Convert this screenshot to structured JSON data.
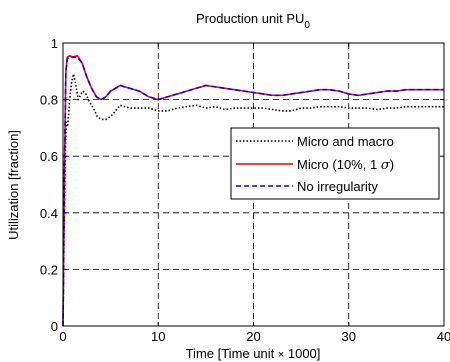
{
  "chart_data": {
    "type": "line",
    "title_main": "Production unit PU",
    "title_sub": "0",
    "xlabel_pre": "Time [Time unit ",
    "xlabel_sym": "×",
    "xlabel_post": " 1000]",
    "ylabel": "Utilization [fraction]",
    "xlim": [
      0,
      40
    ],
    "ylim": [
      0,
      1
    ],
    "xticks": [
      0,
      10,
      20,
      30,
      40
    ],
    "yticks": [
      0,
      0.2,
      0.4,
      0.6,
      0.8,
      1
    ],
    "xtick_labels": [
      "0",
      "10",
      "20",
      "30",
      "40"
    ],
    "ytick_labels": [
      "0",
      "0.2",
      "0.4",
      "0.6",
      "0.8",
      "1"
    ],
    "grid": true,
    "legend_position": "center-right",
    "series": [
      {
        "name": "Micro and macro",
        "color": "#000000",
        "style": "dotted",
        "x": [
          0,
          0.12,
          0.25,
          0.35,
          0.5,
          0.7,
          0.9,
          1.1,
          1.3,
          1.6,
          1.9,
          2.1,
          2.4,
          2.8,
          3.2,
          3.6,
          4.0,
          4.5,
          5.0,
          5.5,
          6.0,
          7.0,
          8.0,
          9.0,
          10.0,
          11,
          12,
          13,
          14,
          15,
          16,
          17,
          18,
          19,
          20,
          21,
          22,
          23,
          24,
          25,
          26,
          27,
          28,
          29,
          30,
          31,
          32,
          33,
          34,
          35,
          36,
          37,
          38,
          39,
          40
        ],
        "y": [
          0.0,
          0.35,
          0.62,
          0.72,
          0.71,
          0.8,
          0.86,
          0.89,
          0.86,
          0.8,
          0.82,
          0.83,
          0.82,
          0.79,
          0.77,
          0.74,
          0.73,
          0.73,
          0.74,
          0.76,
          0.78,
          0.77,
          0.77,
          0.77,
          0.76,
          0.76,
          0.77,
          0.775,
          0.78,
          0.77,
          0.775,
          0.765,
          0.77,
          0.77,
          0.77,
          0.77,
          0.765,
          0.76,
          0.76,
          0.77,
          0.77,
          0.775,
          0.775,
          0.775,
          0.77,
          0.77,
          0.77,
          0.765,
          0.77,
          0.77,
          0.775,
          0.775,
          0.775,
          0.775,
          0.775
        ]
      },
      {
        "name": "Micro (10%, 1 σ)",
        "color": "#ff0000",
        "style": "solid",
        "x": [
          0,
          0.15,
          0.3,
          0.45,
          0.7,
          1.0,
          1.5,
          2.0,
          2.5,
          3.0,
          3.5,
          4.0,
          4.5,
          5.0,
          5.5,
          6.0,
          7.0,
          8.0,
          9.0,
          10.0,
          11,
          12,
          13,
          14,
          15,
          16,
          17,
          18,
          19,
          20,
          21,
          22,
          23,
          24,
          25,
          26,
          27,
          28,
          29,
          30,
          31,
          32,
          33,
          34,
          35,
          36,
          37,
          38,
          39,
          40
        ],
        "y": [
          0.0,
          0.55,
          0.9,
          0.95,
          0.955,
          0.95,
          0.955,
          0.93,
          0.88,
          0.84,
          0.81,
          0.8,
          0.81,
          0.83,
          0.84,
          0.85,
          0.84,
          0.83,
          0.81,
          0.8,
          0.81,
          0.82,
          0.83,
          0.84,
          0.85,
          0.845,
          0.84,
          0.835,
          0.83,
          0.825,
          0.82,
          0.815,
          0.815,
          0.82,
          0.825,
          0.83,
          0.835,
          0.835,
          0.83,
          0.82,
          0.815,
          0.82,
          0.825,
          0.83,
          0.83,
          0.835,
          0.835,
          0.835,
          0.835,
          0.835
        ]
      },
      {
        "name": "No irregularity",
        "color": "#0000ff",
        "style": "dashed",
        "x": [
          0,
          0.15,
          0.3,
          0.45,
          0.7,
          1.0,
          1.5,
          2.0,
          2.5,
          3.0,
          3.5,
          4.0,
          4.5,
          5.0,
          5.5,
          6.0,
          7.0,
          8.0,
          9.0,
          10.0,
          11,
          12,
          13,
          14,
          15,
          16,
          17,
          18,
          19,
          20,
          21,
          22,
          23,
          24,
          25,
          26,
          27,
          28,
          29,
          30,
          31,
          32,
          33,
          34,
          35,
          36,
          37,
          38,
          39,
          40
        ],
        "y": [
          0.0,
          0.55,
          0.9,
          0.945,
          0.95,
          0.95,
          0.95,
          0.93,
          0.88,
          0.84,
          0.81,
          0.8,
          0.81,
          0.83,
          0.84,
          0.85,
          0.84,
          0.83,
          0.81,
          0.8,
          0.81,
          0.82,
          0.83,
          0.84,
          0.85,
          0.845,
          0.84,
          0.835,
          0.83,
          0.825,
          0.82,
          0.815,
          0.815,
          0.82,
          0.825,
          0.83,
          0.835,
          0.835,
          0.83,
          0.82,
          0.815,
          0.82,
          0.825,
          0.83,
          0.83,
          0.835,
          0.835,
          0.835,
          0.835,
          0.835
        ]
      }
    ],
    "legend_labels": {
      "micro_macro": "Micro and macro",
      "micro_pre": "Micro (10%, 1 ",
      "micro_sym": "σ",
      "micro_post": ")",
      "none": "No irregularity"
    }
  }
}
